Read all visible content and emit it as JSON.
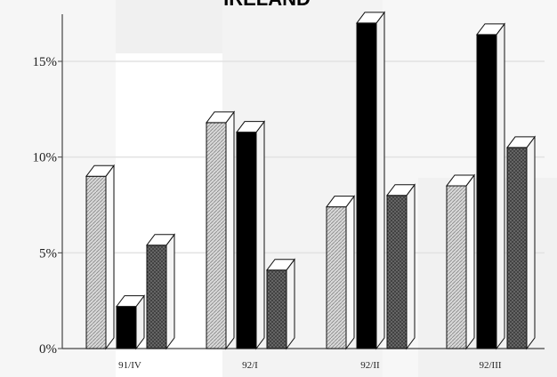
{
  "chart_data": {
    "type": "bar",
    "title": "IRELAND",
    "categories": [
      "91/IV",
      "92/I",
      "92/II",
      "92/III"
    ],
    "series": [
      {
        "values": [
          9.0,
          11.8,
          7.4,
          8.5
        ],
        "color": "#d8d8d8",
        "pattern": "diagonal-hatch"
      },
      {
        "values": [
          2.2,
          11.3,
          17.0,
          16.4
        ],
        "color": "#000000",
        "pattern": "solid"
      },
      {
        "values": [
          5.4,
          4.1,
          8.0,
          10.5
        ],
        "color": "#777777",
        "pattern": "crosshatch"
      }
    ],
    "y_ticks": [
      "0%",
      "5%",
      "10%",
      "15%"
    ],
    "y_tick_values": [
      0,
      5,
      10,
      15
    ],
    "ylim": [
      0,
      17.5
    ],
    "grid": true,
    "xlabel": "",
    "ylabel": ""
  }
}
